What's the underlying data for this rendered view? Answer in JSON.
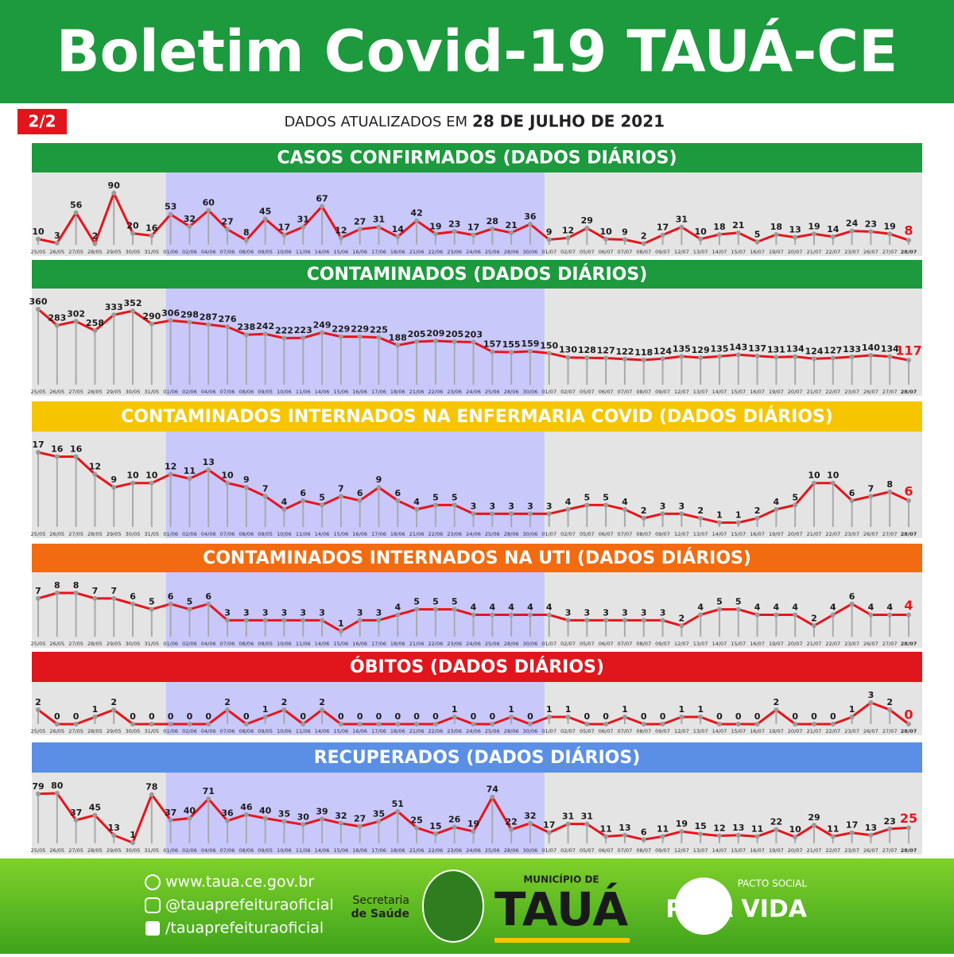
{
  "header": {
    "title": "Boletim Covid-19 TAUÁ-CE",
    "page": "2/2",
    "updated_prefix": "DADOS ATUALIZADOS EM",
    "updated_date": "28 DE JULHO DE 2021"
  },
  "chart_data": [
    {
      "type": "line",
      "title": "CASOS CONFIRMADOS  (DADOS DIÁRIOS)",
      "color": "#e8141b",
      "header_color": "#1c9a3d",
      "categories": [
        "25/05",
        "26/05",
        "27/05",
        "28/05",
        "29/05",
        "30/05",
        "31/05",
        "01/06",
        "02/06",
        "04/06",
        "07/06",
        "08/06",
        "09/05",
        "10/06",
        "11/06",
        "14/06",
        "15/06",
        "16/06",
        "17/06",
        "18/06",
        "21/06",
        "22/06",
        "23/06",
        "24/06",
        "25/06",
        "28/06",
        "30/06",
        "01/07",
        "02/07",
        "05/07",
        "06/07",
        "07/07",
        "08/07",
        "09/07",
        "12/07",
        "13/07",
        "14/07",
        "15/07",
        "16/07",
        "19/07",
        "20/07",
        "21/07",
        "22/07",
        "23/07",
        "26/07",
        "27/07",
        "28/07"
      ],
      "values": [
        10,
        3,
        56,
        2,
        90,
        20,
        16,
        53,
        32,
        60,
        27,
        8,
        45,
        17,
        31,
        67,
        12,
        27,
        31,
        14,
        42,
        19,
        23,
        17,
        28,
        21,
        36,
        9,
        12,
        29,
        10,
        9,
        2,
        17,
        31,
        10,
        18,
        21,
        5,
        18,
        13,
        19,
        14,
        24,
        23,
        19,
        8
      ]
    },
    {
      "type": "line",
      "title": "CONTAMINADOS  (DADOS DIÁRIOS)",
      "color": "#e8141b",
      "header_color": "#1c9a3d",
      "categories": [
        "25/05",
        "26/05",
        "27/05",
        "28/05",
        "29/05",
        "30/05",
        "31/05",
        "01/06",
        "02/06",
        "04/06",
        "07/06",
        "08/06",
        "09/05",
        "10/06",
        "11/06",
        "14/06",
        "15/06",
        "16/06",
        "17/06",
        "18/06",
        "21/06",
        "22/06",
        "23/06",
        "24/06",
        "25/06",
        "28/06",
        "30/06",
        "01/07",
        "02/07",
        "05/07",
        "06/07",
        "07/07",
        "08/07",
        "09/07",
        "12/07",
        "13/07",
        "14/07",
        "15/07",
        "16/07",
        "19/07",
        "20/07",
        "21/07",
        "22/07",
        "23/07",
        "26/07",
        "27/07",
        "28/07"
      ],
      "values": [
        360,
        283,
        302,
        258,
        333,
        352,
        290,
        306,
        298,
        287,
        276,
        238,
        242,
        222,
        223,
        249,
        229,
        229,
        225,
        188,
        205,
        209,
        205,
        203,
        157,
        155,
        159,
        150,
        130,
        128,
        127,
        122,
        118,
        124,
        135,
        129,
        135,
        143,
        137,
        131,
        134,
        124,
        127,
        133,
        140,
        134,
        117
      ]
    },
    {
      "type": "line",
      "title": "CONTAMINADOS INTERNADOS NA ENFERMARIA COVID  (DADOS DIÁRIOS)",
      "color": "#e8141b",
      "header_color": "#f6c500",
      "categories": [
        "25/05",
        "26/05",
        "27/05",
        "28/05",
        "29/05",
        "30/05",
        "31/05",
        "01/06",
        "02/06",
        "04/06",
        "07/06",
        "08/06",
        "09/05",
        "10/06",
        "11/06",
        "14/06",
        "15/06",
        "16/06",
        "17/06",
        "18/06",
        "21/06",
        "22/06",
        "23/06",
        "24/06",
        "25/06",
        "28/06",
        "30/06",
        "01/07",
        "02/07",
        "05/07",
        "06/07",
        "07/07",
        "08/07",
        "09/07",
        "12/07",
        "13/07",
        "14/07",
        "15/07",
        "16/07",
        "19/07",
        "20/07",
        "21/07",
        "22/07",
        "23/07",
        "26/07",
        "27/07",
        "28/07"
      ],
      "values": [
        17,
        16,
        16,
        12,
        9,
        10,
        10,
        12,
        11,
        13,
        10,
        9,
        7,
        4,
        6,
        5,
        7,
        6,
        9,
        6,
        4,
        5,
        5,
        3,
        3,
        3,
        3,
        3,
        4,
        5,
        5,
        4,
        2,
        3,
        3,
        2,
        1,
        1,
        2,
        4,
        5,
        10,
        10,
        6,
        7,
        8,
        6
      ]
    },
    {
      "type": "line",
      "title": "CONTAMINADOS INTERNADOS NA UTI  (DADOS DIÁRIOS)",
      "color": "#e8141b",
      "header_color": "#f26b10",
      "categories": [
        "25/05",
        "26/05",
        "27/05",
        "28/05",
        "29/05",
        "30/05",
        "31/05",
        "01/06",
        "02/06",
        "04/06",
        "07/06",
        "08/06",
        "09/05",
        "10/06",
        "11/06",
        "14/06",
        "15/06",
        "16/06",
        "17/06",
        "18/06",
        "21/06",
        "22/06",
        "23/06",
        "24/06",
        "25/06",
        "28/06",
        "30/06",
        "01/07",
        "02/07",
        "05/07",
        "06/07",
        "07/07",
        "08/07",
        "09/07",
        "12/07",
        "13/07",
        "14/07",
        "15/07",
        "16/07",
        "19/07",
        "20/07",
        "21/07",
        "22/07",
        "23/07",
        "26/07",
        "27/07",
        "28/07"
      ],
      "values": [
        7,
        8,
        8,
        7,
        7,
        6,
        5,
        6,
        5,
        6,
        3,
        3,
        3,
        3,
        3,
        3,
        1,
        3,
        3,
        4,
        5,
        5,
        5,
        4,
        4,
        4,
        4,
        4,
        3,
        3,
        3,
        3,
        3,
        3,
        2,
        4,
        5,
        5,
        4,
        4,
        4,
        2,
        4,
        6,
        4,
        4,
        4
      ]
    },
    {
      "type": "line",
      "title": "ÓBITOS  (DADOS DIÁRIOS)",
      "color": "#e8141b",
      "header_color": "#e0161c",
      "categories": [
        "25/05",
        "26/05",
        "27/05",
        "28/05",
        "29/05",
        "30/05",
        "31/05",
        "01/06",
        "02/06",
        "04/06",
        "07/06",
        "08/06",
        "09/05",
        "10/06",
        "11/06",
        "14/06",
        "15/06",
        "16/06",
        "17/06",
        "18/06",
        "21/06",
        "22/06",
        "23/06",
        "24/06",
        "25/06",
        "28/06",
        "30/06",
        "01/07",
        "02/07",
        "05/07",
        "06/07",
        "07/07",
        "08/07",
        "09/07",
        "12/07",
        "13/07",
        "14/07",
        "15/07",
        "16/07",
        "19/07",
        "20/07",
        "21/07",
        "22/07",
        "23/07",
        "26/07",
        "27/07",
        "28/07"
      ],
      "values": [
        2,
        0,
        0,
        1,
        2,
        0,
        0,
        0,
        0,
        0,
        2,
        0,
        1,
        2,
        0,
        2,
        0,
        0,
        0,
        0,
        0,
        0,
        1,
        0,
        0,
        1,
        0,
        1,
        1,
        0,
        0,
        1,
        0,
        0,
        1,
        1,
        0,
        0,
        0,
        2,
        0,
        0,
        0,
        1,
        3,
        2,
        0
      ]
    },
    {
      "type": "line",
      "title": "RECUPERADOS (DADOS DIÁRIOS)",
      "color": "#e8141b",
      "header_color": "#5b8fe6",
      "categories": [
        "25/05",
        "26/05",
        "27/05",
        "28/05",
        "29/05",
        "30/05",
        "31/05",
        "01/06",
        "02/06",
        "04/06",
        "07/06",
        "08/06",
        "09/05",
        "10/06",
        "11/06",
        "14/06",
        "15/06",
        "16/06",
        "17/06",
        "18/06",
        "21/06",
        "22/06",
        "23/06",
        "24/06",
        "25/06",
        "28/06",
        "30/06",
        "01/07",
        "02/07",
        "05/07",
        "06/07",
        "07/07",
        "08/07",
        "09/07",
        "12/07",
        "13/07",
        "14/07",
        "15/07",
        "16/07",
        "19/07",
        "20/07",
        "21/07",
        "22/07",
        "23/07",
        "26/07",
        "27/07",
        "28/07"
      ],
      "values": [
        79,
        80,
        37,
        45,
        13,
        1,
        78,
        37,
        40,
        71,
        36,
        46,
        40,
        35,
        30,
        39,
        32,
        27,
        35,
        51,
        25,
        15,
        26,
        19,
        74,
        22,
        32,
        17,
        31,
        31,
        11,
        13,
        6,
        11,
        19,
        15,
        12,
        13,
        11,
        22,
        10,
        29,
        11,
        17,
        13,
        23,
        25
      ]
    }
  ],
  "footer": {
    "site": "www.taua.ce.gov.br",
    "instagram": "@tauaprefeituraoficial",
    "facebook": "/tauaprefeituraoficial",
    "secretaria_1": "Secretaria",
    "secretaria_2": "de Saúde",
    "municipio": "MUNICÍPIO DE",
    "city": "TAUÁ",
    "pacto": "PACTO SOCIAL",
    "pela_vida": "PELA VIDA"
  }
}
